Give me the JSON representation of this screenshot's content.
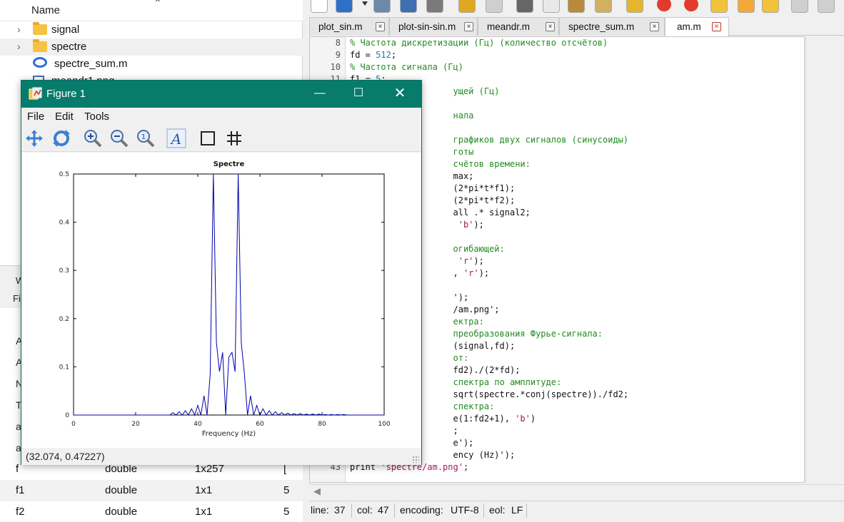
{
  "file_browser": {
    "column_name": "Name",
    "items": [
      {
        "label": "signal",
        "type": "folder"
      },
      {
        "label": "spectre",
        "type": "folder"
      },
      {
        "label": "spectre_sum.m",
        "type": "m-file"
      },
      {
        "label": "meandr1.png",
        "type": "image"
      }
    ]
  },
  "workspace": {
    "title_partial": "W",
    "filter_partial": "Fi",
    "left_letters": [
      "A",
      "A",
      "N",
      "T",
      "a",
      "a"
    ],
    "rows": [
      {
        "name": "f",
        "class": "double",
        "dims": "1x257",
        "value": "["
      },
      {
        "name": "f1",
        "class": "double",
        "dims": "1x1",
        "value": "5"
      },
      {
        "name": "f2",
        "class": "double",
        "dims": "1x1",
        "value": "5"
      }
    ]
  },
  "editor": {
    "toolbar_icons": [
      "new-file-icon",
      "open-folder-icon",
      "dropdown-icon",
      "save-icon",
      "save-as-icon",
      "print-icon",
      "undo-icon",
      "redo-icon",
      "cut-icon",
      "copy-icon",
      "paste-icon",
      "edit-icon",
      "settings-icon",
      "stop-icon",
      "breakpoint-icon",
      "step-icon",
      "step-out-icon",
      "run-icon",
      "continue-icon",
      "forward-icon"
    ],
    "tabs": [
      {
        "label": "plot_sin.m",
        "active": false
      },
      {
        "label": "plot-sin-sin.m",
        "active": false
      },
      {
        "label": "meandr.m",
        "active": false
      },
      {
        "label": "spectre_sum.m",
        "active": false
      },
      {
        "label": "am.m",
        "active": true
      }
    ],
    "lines": [
      {
        "n": "8",
        "text": "% Частота дискретизации (Гц) (количество отсчётов)",
        "kind": "comment"
      },
      {
        "n": "9",
        "text": "fd = 512;",
        "kind": "code"
      },
      {
        "n": "10",
        "text": "% Частота сигнала (Гц)",
        "kind": "comment"
      },
      {
        "n": "11",
        "text": "f1 = 5;",
        "kind": "code"
      },
      {
        "n": "",
        "text": "                    ущей (Гц)",
        "kind": "comment"
      },
      {
        "n": "",
        "text": "",
        "kind": "code"
      },
      {
        "n": "",
        "text": "                    нала",
        "kind": "comment"
      },
      {
        "n": "",
        "text": "",
        "kind": "code"
      },
      {
        "n": "",
        "text": "                    графиков двух сигналов (синусоиды)",
        "kind": "comment"
      },
      {
        "n": "",
        "text": "                    готы",
        "kind": "comment"
      },
      {
        "n": "",
        "text": "                    счётов времени:",
        "kind": "comment"
      },
      {
        "n": "",
        "text": "                    max;",
        "kind": "code"
      },
      {
        "n": "",
        "text": "                    (2*pi*t*f1);",
        "kind": "code"
      },
      {
        "n": "",
        "text": "                    (2*pi*t*f2);",
        "kind": "code"
      },
      {
        "n": "",
        "text": "                    all .* signal2;",
        "kind": "code"
      },
      {
        "n": "",
        "text": "                     'b');",
        "kind": "code"
      },
      {
        "n": "",
        "text": "",
        "kind": "code"
      },
      {
        "n": "",
        "text": "                    огибающей:",
        "kind": "comment"
      },
      {
        "n": "",
        "text": "                     'r');",
        "kind": "code"
      },
      {
        "n": "",
        "text": "                    , 'r');",
        "kind": "code"
      },
      {
        "n": "",
        "text": "",
        "kind": "code"
      },
      {
        "n": "",
        "text": "                    ');",
        "kind": "code"
      },
      {
        "n": "",
        "text": "                    /am.png';",
        "kind": "code"
      },
      {
        "n": "",
        "text": "                    ектра:",
        "kind": "comment"
      },
      {
        "n": "",
        "text": "                    преобразования Фурье-сигнала:",
        "kind": "comment"
      },
      {
        "n": "",
        "text": "                    (signal,fd);",
        "kind": "code"
      },
      {
        "n": "",
        "text": "                    от:",
        "kind": "comment"
      },
      {
        "n": "",
        "text": "                    fd2)./(2*fd);",
        "kind": "code"
      },
      {
        "n": "",
        "text": "                    спектра по амплитуде:",
        "kind": "comment"
      },
      {
        "n": "",
        "text": "                    sqrt(spectre.*conj(spectre))./fd2;",
        "kind": "code"
      },
      {
        "n": "",
        "text": "                    спектра:",
        "kind": "comment"
      },
      {
        "n": "",
        "text": "                    e(1:fd2+1), 'b')",
        "kind": "code"
      },
      {
        "n": "",
        "text": "                    ;",
        "kind": "code"
      },
      {
        "n": "",
        "text": "                    e');",
        "kind": "code"
      },
      {
        "n": "",
        "text": "                    ency (Hz)');",
        "kind": "code"
      },
      {
        "n": "43",
        "text": "print 'spectre/am.png';",
        "kind": "code"
      }
    ],
    "status": {
      "line_label": "line:",
      "line_value": "37",
      "col_label": "col:",
      "col_value": "47",
      "encoding_label": "encoding:",
      "encoding_value": "UTF-8",
      "eol_label": "eol:",
      "eol_value": "LF"
    }
  },
  "figure": {
    "title": "Figure 1",
    "menu": [
      "File",
      "Edit",
      "Tools"
    ],
    "tools": [
      "pan-icon",
      "rotate-icon",
      "zoom-in-icon",
      "zoom-out-icon",
      "zoom-reset-icon",
      "text-tool-icon",
      "axes-box-icon",
      "grid-icon"
    ],
    "coords": "(32.074, 0.47227)"
  },
  "colors": {
    "title_bar": "#077b6c",
    "plot_line": "#0000aa",
    "comment": "#228b22",
    "number": "#1c7fb0",
    "string": "#a3155a"
  },
  "chart_data": {
    "type": "line",
    "title": "Spectre",
    "xlabel": "Frequency (Hz)",
    "ylabel": "",
    "xlim": [
      0,
      100
    ],
    "ylim": [
      0,
      0.5
    ],
    "xticks": [
      0,
      20,
      40,
      60,
      80,
      100
    ],
    "yticks": [
      0,
      0.1,
      0.2,
      0.3,
      0.4,
      0.5
    ],
    "series": [
      {
        "x": [
          0,
          1,
          2,
          3,
          4,
          5,
          6,
          7,
          8,
          9,
          10,
          11,
          12,
          13,
          14,
          15,
          16,
          17,
          18,
          19,
          20,
          21,
          22,
          23,
          24,
          25,
          26,
          27,
          28,
          29,
          30,
          31,
          32,
          33,
          34,
          35,
          36,
          37,
          38,
          39,
          40,
          41,
          42,
          43,
          44,
          45,
          46,
          47,
          48,
          49,
          50,
          51,
          52,
          53,
          54,
          55,
          56,
          57,
          58,
          59,
          60,
          61,
          62,
          63,
          64,
          65,
          66,
          67,
          68,
          69,
          70,
          71,
          72,
          73,
          74,
          75,
          76,
          77,
          78,
          79,
          80,
          81,
          82,
          83,
          84,
          85,
          86,
          87,
          88,
          89,
          90,
          91,
          92,
          93,
          94,
          95,
          96,
          97,
          98,
          99,
          100
        ],
        "y": [
          0,
          0,
          0,
          0,
          0,
          0,
          0,
          0,
          0,
          0,
          0,
          0,
          0,
          0,
          0,
          0,
          0,
          0,
          0,
          0,
          0,
          0,
          0,
          0,
          0,
          0,
          0,
          0,
          0,
          0,
          0,
          0,
          0.005,
          0,
          0.007,
          0,
          0.009,
          0,
          0.013,
          0,
          0.02,
          0,
          0.04,
          0,
          0.085,
          0.5,
          0.15,
          0.09,
          0.13,
          0,
          0.12,
          0.13,
          0.09,
          0.5,
          0.15,
          0.085,
          0,
          0.04,
          0,
          0.02,
          0,
          0.013,
          0,
          0.009,
          0,
          0.007,
          0,
          0.005,
          0,
          0.004,
          0,
          0.003,
          0,
          0.003,
          0,
          0.002,
          0,
          0.002,
          0,
          0.002,
          0,
          0.001,
          0,
          0.001,
          0,
          0.001,
          0,
          0.001,
          0,
          0,
          0,
          0,
          0,
          0,
          0,
          0,
          0,
          0,
          0,
          0,
          0
        ]
      }
    ],
    "grid": false
  }
}
